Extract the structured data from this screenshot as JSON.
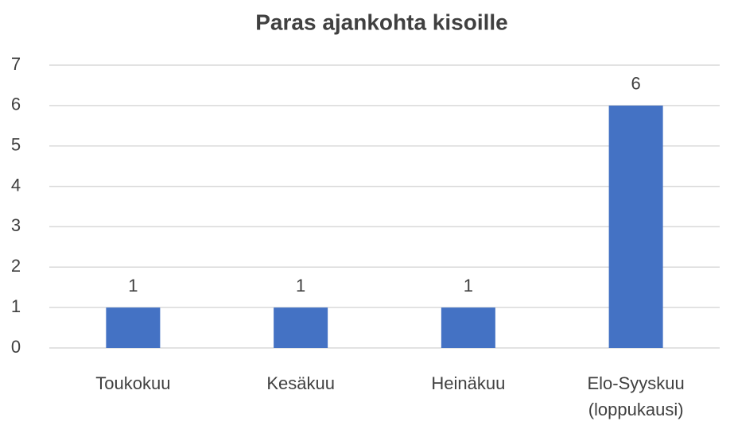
{
  "chart_data": {
    "type": "bar",
    "title": "Paras ajankohta kisoille",
    "categories": [
      "Toukokuu",
      "Kesäkuu",
      "Heinäkuu",
      "Elo-Syyskuu (loppukausi)"
    ],
    "values": [
      1,
      1,
      1,
      6
    ],
    "color": "#4472c4",
    "ylim": [
      0,
      7
    ],
    "yticks": [
      0,
      1,
      2,
      3,
      4,
      5,
      6,
      7
    ],
    "grid": true
  }
}
